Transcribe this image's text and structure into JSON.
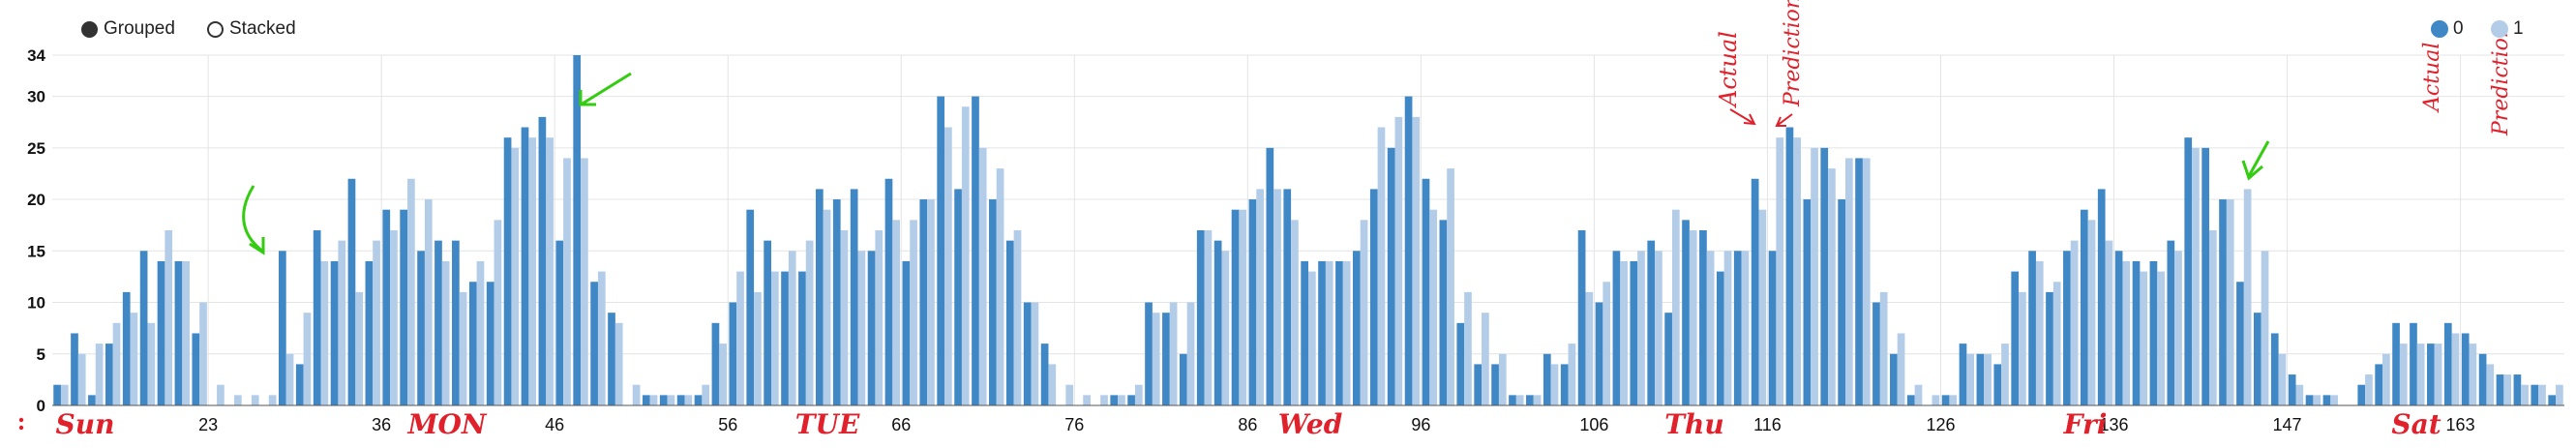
{
  "controls": {
    "grouped_label": "Grouped",
    "stacked_label": "Stacked",
    "selected": "Grouped"
  },
  "colors": {
    "series_0": "#3f88c5",
    "series_1": "#b3cde8",
    "annotation_red": "#e0202a",
    "annotation_green": "#33cc11",
    "grid": "#e4e4e4"
  },
  "chart_data": {
    "type": "bar",
    "mode": "grouped",
    "ylim": [
      0,
      34
    ],
    "y_ticks": [
      0,
      5,
      10,
      15,
      20,
      25,
      30,
      34
    ],
    "x_tick_labels": [
      "23",
      "36",
      "46",
      "56",
      "66",
      "76",
      "86",
      "96",
      "106",
      "116",
      "126",
      "136",
      "147",
      "163"
    ],
    "grid": true,
    "legend_position": "top-right",
    "series": [
      {
        "name": "0",
        "values": [
          2,
          7,
          1,
          6,
          11,
          15,
          14,
          14,
          7,
          0,
          0,
          0,
          0,
          15,
          4,
          17,
          14,
          22,
          14,
          19,
          19,
          15,
          16,
          16,
          12,
          12,
          26,
          27,
          28,
          16,
          34,
          12,
          9,
          0,
          1,
          1,
          1,
          1,
          8,
          10,
          19,
          16,
          13,
          13,
          21,
          20,
          21,
          15,
          22,
          14,
          20,
          30,
          21,
          30,
          20,
          16,
          10,
          6,
          0,
          0,
          0,
          1,
          1,
          10,
          9,
          5,
          17,
          16,
          19,
          20,
          25,
          21,
          14,
          14,
          14,
          15,
          21,
          25,
          30,
          22,
          18,
          8,
          4,
          4,
          1,
          1,
          5,
          4,
          17,
          10,
          15,
          14,
          16,
          9,
          18,
          17,
          13,
          15,
          22,
          15,
          27,
          20,
          25,
          20,
          24,
          10,
          5,
          1,
          0,
          1,
          6,
          5,
          4,
          13,
          15,
          11,
          15,
          19,
          21,
          15,
          14,
          14,
          16,
          26,
          25,
          20,
          12,
          9,
          7,
          3,
          1,
          1,
          0,
          2,
          4,
          8,
          8,
          6,
          8,
          7,
          5,
          3,
          3,
          2,
          1
        ],
        "color": "#3f88c5"
      },
      {
        "name": "1",
        "values": [
          2,
          5,
          6,
          8,
          9,
          8,
          17,
          14,
          10,
          2,
          1,
          1,
          1,
          5,
          9,
          14,
          16,
          11,
          16,
          17,
          22,
          20,
          14,
          11,
          14,
          18,
          25,
          26,
          26,
          24,
          24,
          13,
          8,
          2,
          1,
          1,
          1,
          2,
          6,
          13,
          11,
          13,
          15,
          16,
          19,
          17,
          15,
          17,
          18,
          18,
          20,
          27,
          29,
          25,
          23,
          17,
          10,
          4,
          2,
          1,
          1,
          1,
          2,
          9,
          10,
          10,
          17,
          15,
          19,
          21,
          21,
          18,
          13,
          14,
          14,
          18,
          27,
          28,
          28,
          19,
          23,
          11,
          9,
          5,
          1,
          1,
          4,
          6,
          11,
          12,
          14,
          15,
          15,
          19,
          17,
          15,
          15,
          15,
          19,
          26,
          26,
          25,
          23,
          24,
          24,
          11,
          7,
          2,
          1,
          1,
          5,
          5,
          6,
          11,
          14,
          12,
          16,
          18,
          16,
          14,
          13,
          13,
          15,
          25,
          17,
          20,
          21,
          15,
          5,
          2,
          1,
          1,
          0,
          3,
          5,
          6,
          6,
          6,
          7,
          6,
          4,
          3,
          2,
          2,
          2
        ],
        "color": "#b3cde8"
      }
    ]
  },
  "annotations": {
    "day_labels": [
      "Sun",
      "MON",
      "TUE",
      "Wed",
      "Thu",
      "Fri",
      "Sat"
    ],
    "actual_label": "Actual",
    "prediction_label": "Prediction"
  }
}
